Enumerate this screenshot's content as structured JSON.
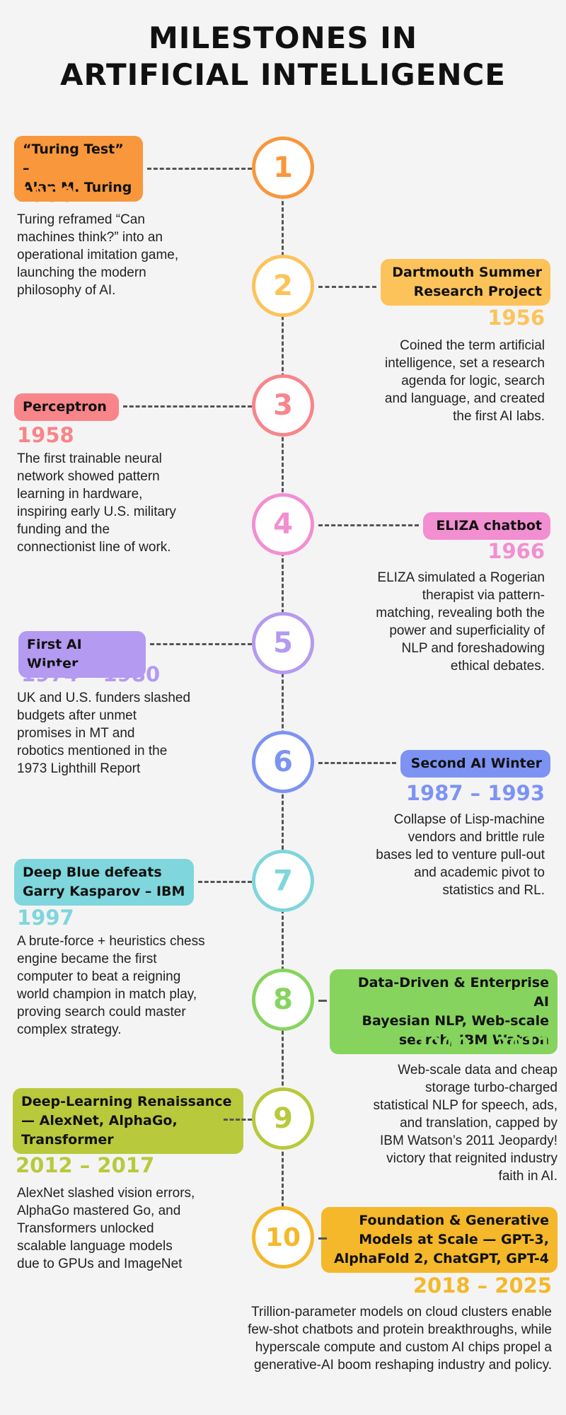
{
  "title": [
    "MILESTONES IN",
    "ARTIFICIAL INTELLIGENCE"
  ],
  "milestones": [
    {
      "number": "1",
      "label": [
        "“Turing Test” –",
        "Alan M. Turing"
      ],
      "year": "1950",
      "color": "#f8973b",
      "desc": [
        "Turing reframed “Can",
        "machines think?” into an",
        "operational imitation game,",
        "launching the modern",
        "philosophy of AI."
      ]
    },
    {
      "number": "2",
      "label": [
        "Dartmouth Summer",
        "Research Project"
      ],
      "year": "1956",
      "color": "#fcc35a",
      "desc": [
        "Coined the term artificial",
        "intelligence, set a research",
        "agenda for logic, search",
        "and language, and created",
        "the first AI labs."
      ]
    },
    {
      "number": "3",
      "label": [
        "Perceptron"
      ],
      "year": "1958",
      "color": "#f8858a",
      "desc": [
        "The first trainable neural",
        "network showed pattern",
        "learning in hardware,",
        "inspiring early U.S. military",
        "funding and the",
        "connectionist line of work."
      ]
    },
    {
      "number": "4",
      "label": [
        "ELIZA chatbot"
      ],
      "year": "1966",
      "color": "#f28fd0",
      "desc": [
        "ELIZA simulated a Rogerian",
        "therapist via pattern-",
        "matching, revealing both the",
        "power and superficiality of",
        "NLP and foreshadowing",
        "ethical debates."
      ]
    },
    {
      "number": "5",
      "label": [
        "First AI Winter"
      ],
      "year": "1974 – 1980",
      "color": "#b49af0",
      "desc": [
        "UK and U.S. funders slashed",
        "budgets after unmet",
        "promises in MT and",
        "robotics mentioned in the",
        "1973 Lighthill Report"
      ]
    },
    {
      "number": "6",
      "label": [
        "Second AI Winter"
      ],
      "year": "1987 – 1993",
      "color": "#7d93f3",
      "desc": [
        "Collapse of Lisp-machine",
        "vendors and brittle rule",
        "bases led to venture pull-out",
        "and academic pivot to",
        "statistics and RL."
      ]
    },
    {
      "number": "7",
      "label": [
        "Deep Blue defeats",
        "Garry Kasparov – IBM"
      ],
      "year": "1997",
      "color": "#7fd6dc",
      "desc": [
        "A brute-force + heuristics chess",
        "engine became the first",
        "computer to beat a reigning",
        "world champion in match play,",
        "proving search could master",
        "complex strategy."
      ]
    },
    {
      "number": "8",
      "label": [
        "Data-Driven & Enterprise AI",
        "Bayesian NLP, Web-scale",
        "search, IBM Watson"
      ],
      "year": "2000 – 2011",
      "color": "#86d45e",
      "desc": [
        "Web-scale data and cheap",
        "storage turbo-charged",
        "statistical NLP for speech, ads,",
        "and translation, capped by",
        "IBM Watson’s 2011 Jeopardy!",
        "victory that reignited industry",
        "faith in AI."
      ]
    },
    {
      "number": "9",
      "label": [
        "Deep-Learning Renaissance",
        "— AlexNet, AlphaGo,",
        "Transformer"
      ],
      "year": "2012 – 2017",
      "color": "#b8c93c",
      "desc": [
        "AlexNet slashed vision errors,",
        "AlphaGo mastered Go, and",
        "Transformers unlocked",
        "scalable language models",
        "due to GPUs and ImageNet"
      ]
    },
    {
      "number": "10",
      "label": [
        "Foundation & Generative",
        "Models at Scale — GPT-3,",
        "AlphaFold 2, ChatGPT, GPT-4"
      ],
      "year": "2018 – 2025",
      "color": "#f4b82a",
      "desc": [
        "Trillion-parameter models on cloud clusters enable",
        "few-shot chatbots and protein breakthroughs, while",
        "hyperscale compute and custom AI chips propel a",
        "generative-AI boom reshaping industry and policy."
      ]
    }
  ]
}
